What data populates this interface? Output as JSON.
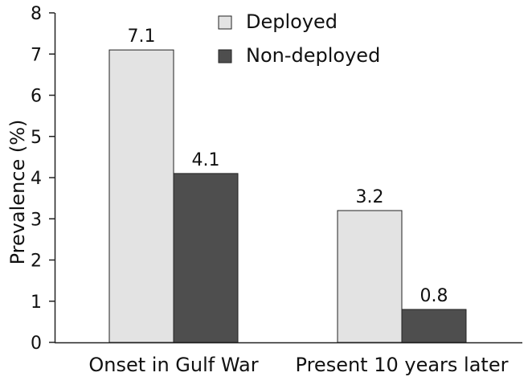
{
  "chart_data": {
    "type": "bar",
    "categories": [
      "Onset in Gulf War",
      "Present 10 years later"
    ],
    "series": [
      {
        "name": "Deployed",
        "values": [
          7.1,
          3.2
        ],
        "color": "#e3e3e3"
      },
      {
        "name": "Non-deployed",
        "values": [
          4.1,
          0.8
        ],
        "color": "#4e4e4e"
      }
    ],
    "data_labels": [
      "7.1",
      "4.1",
      "3.2",
      "0.8"
    ],
    "ylabel": "Prevalence (%)",
    "ylim": [
      0,
      8
    ],
    "yticks": [
      0,
      1,
      2,
      3,
      4,
      5,
      6,
      7,
      8
    ],
    "ytick_labels": [
      "0",
      "1",
      "2",
      "3",
      "4",
      "5",
      "6",
      "7",
      "8"
    ],
    "grid": false,
    "legend_position": "top-right"
  }
}
